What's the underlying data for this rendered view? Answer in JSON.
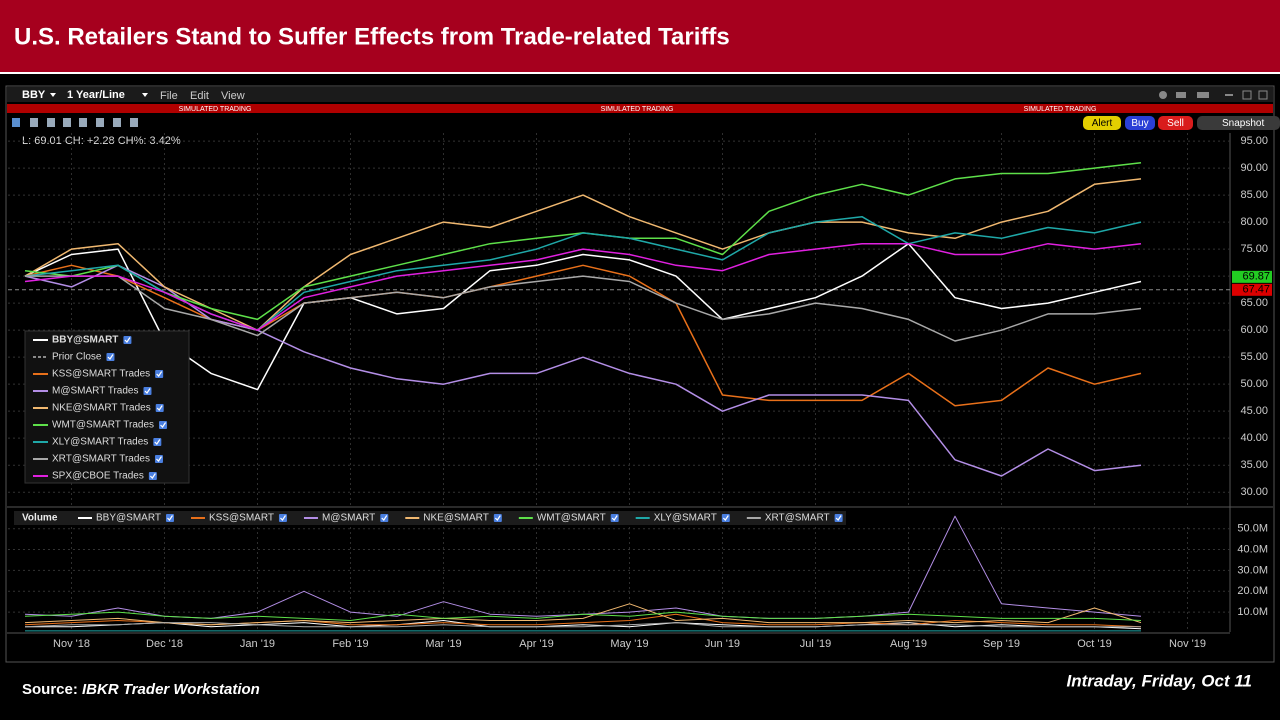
{
  "slide": {
    "title": "U.S. Retailers Stand to Suffer Effects from Trade-related Tariffs",
    "source_label": "Source:",
    "source": "IBKR Trader Workstation",
    "note": "Intraday, Friday, Oct 11"
  },
  "toolbar": {
    "symbol": "BBY",
    "period": "1 Year/Line",
    "menus": [
      "File",
      "Edit",
      "View"
    ],
    "banners": [
      "SIMULATED TRADING",
      "SIMULATED TRADING",
      "SIMULATED TRADING"
    ],
    "buttons": [
      {
        "label": "Alert",
        "color": "#e3cf00"
      },
      {
        "label": "Buy",
        "color": "#2a3fd6"
      },
      {
        "label": "Sell",
        "color": "#d91c1c"
      },
      {
        "label": "Snapshot",
        "color": "#3a3a3a"
      }
    ],
    "quote": "L: 69.01 CH: +2.28 CH%: 3.42%"
  },
  "chart_data": [
    {
      "type": "line",
      "categories": [
        null,
        "Nov '18",
        null,
        "Dec '18",
        null,
        "Jan '19",
        null,
        "Feb '19",
        null,
        "Mar '19",
        null,
        "Apr '19",
        null,
        "May '19",
        null,
        "Jun '19",
        null,
        "Jul '19",
        null,
        "Aug '19",
        null,
        "Sep '19",
        null,
        "Oct '19",
        null,
        "Nov '19"
      ],
      "ylim": [
        28,
        96.5
      ],
      "yticks": [
        {
          "value": 30,
          "label": "30.00"
        },
        {
          "value": 35,
          "label": "35.00"
        },
        {
          "value": 40,
          "label": "40.00"
        },
        {
          "value": 45,
          "label": "45.00"
        },
        {
          "value": 50,
          "label": "50.00"
        },
        {
          "value": 55,
          "label": "55.00"
        },
        {
          "value": 60,
          "label": "60.00"
        },
        {
          "value": 65,
          "label": "65.00"
        },
        {
          "value": 70,
          "label": "70.00"
        },
        {
          "value": 75,
          "label": "75.00"
        },
        {
          "value": 80,
          "label": "80.00"
        },
        {
          "value": 85,
          "label": "85.00"
        },
        {
          "value": 90,
          "label": "90.00"
        },
        {
          "value": 95,
          "label": "95.00"
        }
      ],
      "grid": true,
      "series": [
        {
          "name": "BBY@SMART",
          "color": "#ffffff",
          "values": [
            70,
            74,
            75,
            58,
            52,
            49,
            65,
            66,
            63,
            64,
            71,
            72,
            74,
            73,
            70,
            62,
            64,
            66,
            70,
            76,
            66,
            64,
            65,
            67,
            69,
            null
          ]
        },
        {
          "name": "KSS@SMART Trades",
          "color": "#e8701a",
          "values": [
            70,
            72,
            70,
            66,
            62,
            60,
            65,
            66,
            67,
            66,
            68,
            70,
            72,
            70,
            65,
            48,
            47,
            47,
            47,
            52,
            46,
            47,
            53,
            50,
            52,
            null
          ]
        },
        {
          "name": "M@SMART Trades",
          "color": "#b38ee6",
          "values": [
            70,
            68,
            72,
            68,
            62,
            60,
            56,
            53,
            51,
            50,
            52,
            52,
            55,
            52,
            50,
            45,
            48,
            48,
            48,
            47,
            36,
            33,
            38,
            34,
            35,
            null
          ]
        },
        {
          "name": "NKE@SMART Trades",
          "color": "#f0b870",
          "values": [
            70,
            75,
            76,
            68,
            64,
            60,
            68,
            74,
            77,
            80,
            79,
            82,
            85,
            81,
            78,
            75,
            78,
            80,
            80,
            78,
            77,
            80,
            82,
            87,
            88,
            null
          ]
        },
        {
          "name": "WMT@SMART Trades",
          "color": "#5ee04a",
          "values": [
            71,
            70,
            72,
            67,
            64,
            62,
            68,
            70,
            72,
            74,
            76,
            77,
            78,
            77,
            77,
            74,
            82,
            85,
            87,
            85,
            88,
            89,
            89,
            90,
            91,
            null
          ]
        },
        {
          "name": "XLY@SMART Trades",
          "color": "#1fa8a8",
          "values": [
            70,
            71,
            72,
            67,
            63,
            60,
            67,
            69,
            71,
            72,
            73,
            75,
            78,
            77,
            75,
            73,
            78,
            80,
            81,
            76,
            78,
            77,
            79,
            78,
            80,
            null
          ]
        },
        {
          "name": "XRT@SMART Trades",
          "color": "#a8a8a8",
          "values": [
            70,
            70,
            70,
            64,
            62,
            59,
            65,
            66,
            67,
            66,
            68,
            69,
            70,
            69,
            65,
            62,
            63,
            65,
            64,
            62,
            58,
            60,
            63,
            63,
            64,
            null
          ]
        },
        {
          "name": "SPX@CBOE Trades",
          "color": "#e020e0",
          "values": [
            69,
            70,
            70,
            67,
            63,
            60,
            66,
            68,
            70,
            71,
            72,
            73,
            75,
            74,
            72,
            71,
            74,
            75,
            76,
            76,
            74,
            74,
            76,
            75,
            76,
            null
          ]
        }
      ],
      "reference_line": {
        "name": "Prior Close",
        "value": 67.47,
        "color": "#8a8a8a"
      },
      "price_labels": [
        {
          "value": 69.87,
          "label": "69.87",
          "color": "#22cc22"
        },
        {
          "value": 67.47,
          "label": "67.47",
          "color": "#dd0000"
        }
      ]
    },
    {
      "type": "line",
      "legend_title": "Volume",
      "categories": [
        null,
        "Nov '18",
        null,
        "Dec '18",
        null,
        "Jan '19",
        null,
        "Feb '19",
        null,
        "Mar '19",
        null,
        "Apr '19",
        null,
        "May '19",
        null,
        "Jun '19",
        null,
        "Jul '19",
        null,
        "Aug '19",
        null,
        "Sep '19",
        null,
        "Oct '19",
        null,
        "Nov '19"
      ],
      "ylim": [
        0,
        58
      ],
      "yticks": [
        {
          "value": 10,
          "label": "10.0M"
        },
        {
          "value": 20,
          "label": "20.0M"
        },
        {
          "value": 30,
          "label": "30.0M"
        },
        {
          "value": 40,
          "label": "40.0M"
        },
        {
          "value": 50,
          "label": "50.0M"
        }
      ],
      "grid": true,
      "series": [
        {
          "name": "BBY@SMART",
          "color": "#ffffff",
          "values": [
            3,
            3,
            4,
            5,
            3,
            4,
            5,
            3,
            4,
            6,
            3,
            3,
            4,
            3,
            5,
            4,
            3,
            3,
            4,
            5,
            3,
            4,
            3,
            3,
            2,
            null
          ]
        },
        {
          "name": "KSS@SMART",
          "color": "#e8701a",
          "values": [
            4,
            5,
            6,
            5,
            4,
            5,
            6,
            4,
            4,
            5,
            4,
            4,
            5,
            6,
            9,
            5,
            4,
            4,
            5,
            4,
            6,
            5,
            4,
            4,
            3,
            null
          ]
        },
        {
          "name": "M@SMART",
          "color": "#b38ee6",
          "values": [
            9,
            8,
            12,
            8,
            7,
            10,
            20,
            10,
            8,
            15,
            9,
            8,
            9,
            10,
            12,
            8,
            7,
            7,
            8,
            10,
            56,
            14,
            12,
            10,
            8,
            null
          ]
        },
        {
          "name": "NKE@SMART",
          "color": "#f0b870",
          "values": [
            5,
            6,
            7,
            5,
            4,
            5,
            6,
            5,
            6,
            7,
            6,
            6,
            7,
            14,
            6,
            7,
            5,
            5,
            5,
            6,
            5,
            6,
            5,
            12,
            5,
            null
          ]
        },
        {
          "name": "WMT@SMART",
          "color": "#5ee04a",
          "values": [
            8,
            9,
            10,
            8,
            7,
            8,
            7,
            6,
            9,
            7,
            8,
            7,
            9,
            8,
            10,
            8,
            7,
            7,
            8,
            9,
            8,
            7,
            7,
            7,
            6,
            null
          ]
        },
        {
          "name": "XLY@SMART",
          "color": "#1fa8a8",
          "values": [
            1,
            1,
            1,
            1,
            1,
            1,
            1,
            1,
            1,
            1,
            1,
            1,
            1,
            1,
            1,
            1,
            1,
            1,
            1,
            1,
            1,
            1,
            1,
            1,
            1,
            null
          ]
        },
        {
          "name": "XRT@SMART",
          "color": "#a8a8a8",
          "values": [
            3,
            4,
            4,
            5,
            5,
            4,
            3,
            3,
            3,
            4,
            3,
            3,
            3,
            4,
            5,
            3,
            3,
            3,
            4,
            4,
            4,
            3,
            3,
            3,
            3,
            null
          ]
        }
      ]
    }
  ]
}
